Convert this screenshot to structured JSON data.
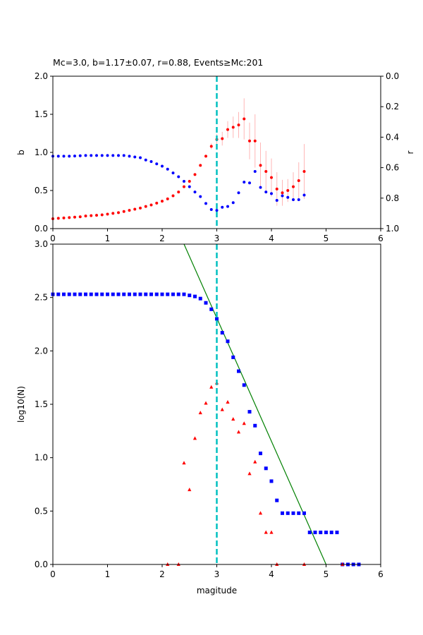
{
  "title": "Mc=3.0, b=1.17±0.07, r=0.88, Events≥Mc:201",
  "chart_data": [
    {
      "type": "scatter",
      "title": "Mc=3.0, b=1.17±0.07, r=0.88, Events≥Mc:201",
      "xlabel": "",
      "ylabel": "b",
      "y2label": "r",
      "xlim": [
        0,
        6
      ],
      "ylim": [
        0,
        2
      ],
      "y2lim": [
        1.0,
        0.0
      ],
      "y2_inverted": true,
      "xticks": [
        "0",
        "1",
        "2",
        "3",
        "4",
        "5",
        "6"
      ],
      "yticks": [
        "0.0",
        "0.5",
        "1.0",
        "1.5",
        "2.0"
      ],
      "y2ticks": [
        "0.0",
        "0.2",
        "0.4",
        "0.6",
        "0.8",
        "1.0"
      ],
      "mc_line_x": 3.0,
      "series": [
        {
          "axis": "left",
          "color": "#ff0000",
          "marker": "circle",
          "x": [
            0.0,
            0.1,
            0.2,
            0.3,
            0.4,
            0.5,
            0.6,
            0.7,
            0.8,
            0.9,
            1.0,
            1.1,
            1.2,
            1.3,
            1.4,
            1.5,
            1.6,
            1.7,
            1.8,
            1.9,
            2.0,
            2.1,
            2.2,
            2.3,
            2.4,
            2.5,
            2.6,
            2.7,
            2.8,
            2.9,
            3.0,
            3.1,
            3.2,
            3.3,
            3.4,
            3.5,
            3.6,
            3.7,
            3.8,
            3.9,
            4.0,
            4.1,
            4.2,
            4.3,
            4.4,
            4.5,
            4.6
          ],
          "y": [
            0.13,
            0.135,
            0.14,
            0.145,
            0.15,
            0.155,
            0.165,
            0.17,
            0.175,
            0.18,
            0.19,
            0.2,
            0.21,
            0.225,
            0.24,
            0.255,
            0.27,
            0.29,
            0.31,
            0.335,
            0.36,
            0.39,
            0.43,
            0.48,
            0.55,
            0.62,
            0.71,
            0.83,
            0.95,
            1.08,
            1.17,
            1.18,
            1.3,
            1.33,
            1.36,
            1.44,
            1.15,
            1.15,
            0.83,
            0.75,
            0.67,
            0.52,
            0.47,
            0.5,
            0.55,
            0.63,
            0.75
          ],
          "yerr": [
            0,
            0,
            0,
            0,
            0,
            0,
            0,
            0,
            0,
            0,
            0,
            0,
            0,
            0,
            0,
            0,
            0,
            0,
            0,
            0,
            0,
            0,
            0,
            0,
            0,
            0,
            0,
            0,
            0.02,
            0.04,
            0.07,
            0.09,
            0.11,
            0.14,
            0.17,
            0.27,
            0.24,
            0.35,
            0.3,
            0.27,
            0.25,
            0.22,
            0.17,
            0.15,
            0.19,
            0.24,
            0.36
          ]
        },
        {
          "axis": "right",
          "color": "#0000ff",
          "marker": "circle",
          "x": [
            0.0,
            0.1,
            0.2,
            0.3,
            0.4,
            0.5,
            0.6,
            0.7,
            0.8,
            0.9,
            1.0,
            1.1,
            1.2,
            1.3,
            1.4,
            1.5,
            1.6,
            1.7,
            1.8,
            1.9,
            2.0,
            2.1,
            2.2,
            2.3,
            2.4,
            2.5,
            2.6,
            2.7,
            2.8,
            2.9,
            3.0,
            3.1,
            3.2,
            3.3,
            3.4,
            3.5,
            3.6,
            3.7,
            3.8,
            3.9,
            4.0,
            4.1,
            4.2,
            4.3,
            4.4,
            4.5,
            4.6
          ],
          "y": [
            0.525,
            0.525,
            0.525,
            0.525,
            0.524,
            0.522,
            0.52,
            0.52,
            0.52,
            0.52,
            0.52,
            0.52,
            0.52,
            0.52,
            0.525,
            0.53,
            0.535,
            0.55,
            0.56,
            0.575,
            0.59,
            0.61,
            0.635,
            0.66,
            0.69,
            0.725,
            0.76,
            0.79,
            0.835,
            0.875,
            0.88,
            0.86,
            0.855,
            0.83,
            0.765,
            0.695,
            0.7,
            0.625,
            0.73,
            0.76,
            0.77,
            0.815,
            0.785,
            0.795,
            0.81,
            0.81,
            0.78
          ]
        }
      ]
    },
    {
      "type": "scatter",
      "title": "",
      "xlabel": "magitude",
      "ylabel": "log10(N)",
      "xlim": [
        0,
        6
      ],
      "ylim": [
        0,
        3
      ],
      "xticks": [
        "0",
        "1",
        "2",
        "3",
        "4",
        "5",
        "6"
      ],
      "yticks": [
        "0.0",
        "0.5",
        "1.0",
        "1.5",
        "2.0",
        "2.5",
        "3.0"
      ],
      "mc_line_x": 3.0,
      "fit_line": {
        "color": "#008000",
        "x": [
          2.4,
          5.0
        ],
        "y": [
          3.0,
          0.0
        ]
      },
      "series": [
        {
          "color": "#0000ff",
          "marker": "square",
          "x": [
            0.0,
            0.1,
            0.2,
            0.3,
            0.4,
            0.5,
            0.6,
            0.7,
            0.8,
            0.9,
            1.0,
            1.1,
            1.2,
            1.3,
            1.4,
            1.5,
            1.6,
            1.7,
            1.8,
            1.9,
            2.0,
            2.1,
            2.2,
            2.3,
            2.4,
            2.5,
            2.6,
            2.7,
            2.8,
            2.9,
            3.0,
            3.1,
            3.2,
            3.3,
            3.4,
            3.5,
            3.6,
            3.7,
            3.8,
            3.9,
            4.0,
            4.1,
            4.2,
            4.3,
            4.4,
            4.5,
            4.6,
            4.7,
            4.8,
            4.9,
            5.0,
            5.1,
            5.2,
            5.3,
            5.4,
            5.5,
            5.6
          ],
          "y": [
            2.53,
            2.53,
            2.53,
            2.53,
            2.53,
            2.53,
            2.53,
            2.53,
            2.53,
            2.53,
            2.53,
            2.53,
            2.53,
            2.53,
            2.53,
            2.53,
            2.53,
            2.53,
            2.53,
            2.53,
            2.53,
            2.53,
            2.53,
            2.53,
            2.53,
            2.52,
            2.51,
            2.49,
            2.45,
            2.39,
            2.3,
            2.17,
            2.09,
            1.94,
            1.81,
            1.68,
            1.43,
            1.3,
            1.04,
            0.9,
            0.78,
            0.6,
            0.48,
            0.48,
            0.48,
            0.48,
            0.48,
            0.3,
            0.3,
            0.3,
            0.3,
            0.3,
            0.3,
            0.0,
            0.0,
            0.0,
            0.0
          ]
        },
        {
          "color": "#ff0000",
          "marker": "triangle",
          "x": [
            2.1,
            2.3,
            2.4,
            2.5,
            2.6,
            2.7,
            2.8,
            2.9,
            3.0,
            3.1,
            3.2,
            3.3,
            3.4,
            3.5,
            3.6,
            3.7,
            3.8,
            3.9,
            4.0,
            4.1,
            4.6,
            5.3
          ],
          "y": [
            0.0,
            0.0,
            0.95,
            0.7,
            1.18,
            1.42,
            1.51,
            1.66,
            1.7,
            1.45,
            1.52,
            1.36,
            1.24,
            1.32,
            0.85,
            0.96,
            0.48,
            0.3,
            0.3,
            0.0,
            0.0,
            0.0
          ]
        }
      ]
    }
  ]
}
